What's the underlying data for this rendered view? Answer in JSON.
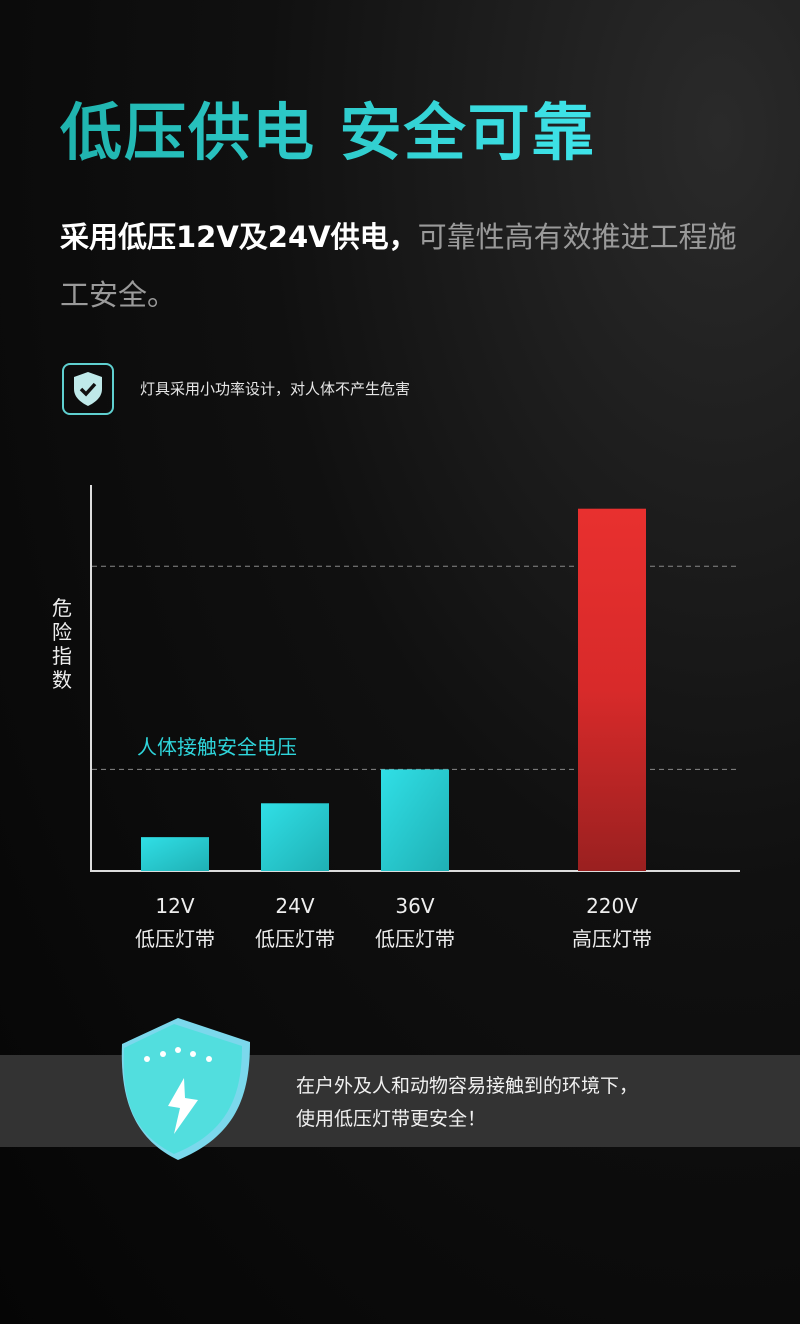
{
  "header": {
    "title": "低压供电 安全可靠",
    "subtitle_bold": "采用低压12V及24V供电，",
    "subtitle_rest": "可靠性高有效推进工程施工安全。"
  },
  "feature": {
    "icon": "shield-check-icon",
    "text": "灯具采用小功率设计，对人体不产生危害"
  },
  "chart_data": {
    "type": "bar",
    "ylabel": "危险指数",
    "categories": [
      "12V 低压灯带",
      "24V 低压灯带",
      "36V 低压灯带",
      "220V 高压灯带"
    ],
    "tick_labels": [
      [
        "12V",
        "低压灯带"
      ],
      [
        "24V",
        "低压灯带"
      ],
      [
        "36V",
        "低压灯带"
      ],
      [
        "220V",
        "高压灯带"
      ]
    ],
    "values": [
      1,
      2,
      3,
      10.7
    ],
    "colors": [
      "#2fd6dc",
      "#2fd6dc",
      "#2fd6dc",
      "#e62e2e"
    ],
    "ylim": [
      0,
      11.4
    ],
    "reference_lines": [
      {
        "value": 3,
        "label": "人体接触安全电压"
      },
      {
        "value": 9,
        "label": ""
      }
    ],
    "annotation_color": "#2fd6dc",
    "grid": false
  },
  "footer": {
    "icon": "shield-lightning-icon",
    "line1": "在户外及人和动物容易接触到的环境下，",
    "line2": "使用低压灯带更安全！"
  }
}
